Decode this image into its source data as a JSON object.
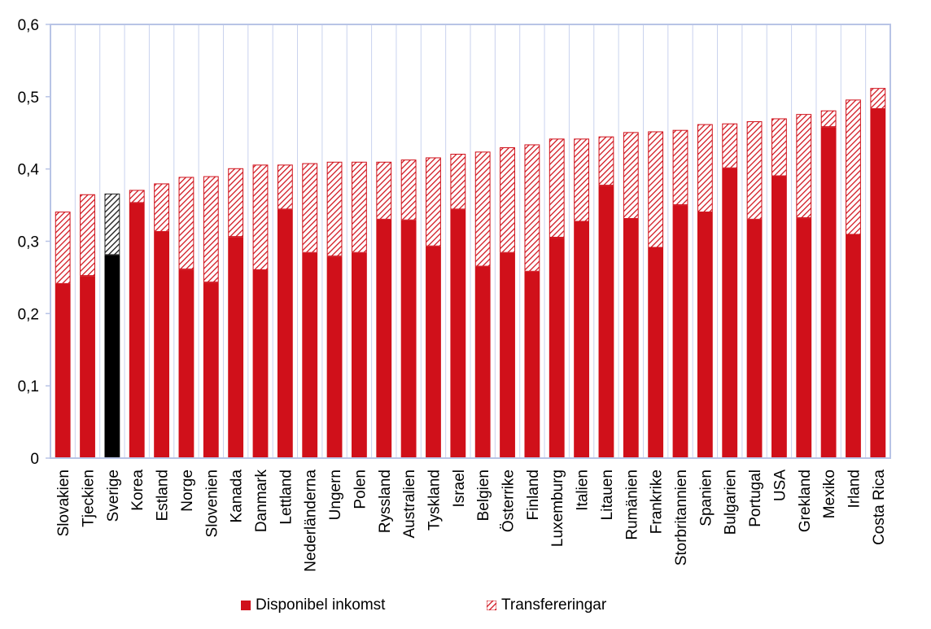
{
  "chart_data": {
    "type": "bar",
    "stacked": true,
    "ylim": [
      0,
      0.6
    ],
    "yticks": [
      "0",
      "0,1",
      "0,2",
      "0,3",
      "0,4",
      "0,5",
      "0,6"
    ],
    "grid": "vertical",
    "legend_position": "bottom",
    "categories": [
      "Slovakien",
      "Tjeckien",
      "Sverige",
      "Korea",
      "Estland",
      "Norge",
      "Slovenien",
      "Kanada",
      "Danmark",
      "Lettland",
      "Nederländerna",
      "Ungern",
      "Polen",
      "Ryssland",
      "Australien",
      "Tyskland",
      "Israel",
      "Belgien",
      "Österrike",
      "Finland",
      "Luxemburg",
      "Italien",
      "Litauen",
      "Rumänien",
      "Frankrike",
      "Storbritannien",
      "Spanien",
      "Bulgarien",
      "Portugal",
      "USA",
      "Grekland",
      "Mexiko",
      "Irland",
      "Costa Rica"
    ],
    "highlight_category": "Sverige",
    "series": [
      {
        "name": "Disponibel inkomst",
        "color": "#d0101a",
        "highlight_color": "#000000",
        "values": [
          0.241,
          0.252,
          0.281,
          0.353,
          0.313,
          0.261,
          0.243,
          0.306,
          0.26,
          0.344,
          0.284,
          0.279,
          0.284,
          0.33,
          0.329,
          0.293,
          0.344,
          0.265,
          0.284,
          0.258,
          0.305,
          0.327,
          0.377,
          0.331,
          0.291,
          0.35,
          0.34,
          0.401,
          0.33,
          0.39,
          0.332,
          0.458,
          0.309,
          0.483
        ]
      },
      {
        "name": "Transfereringar",
        "color": "#d0101a",
        "pattern": "hatched",
        "highlight_color": "#000000",
        "values": [
          0.1,
          0.113,
          0.085,
          0.018,
          0.067,
          0.128,
          0.147,
          0.095,
          0.146,
          0.062,
          0.124,
          0.131,
          0.126,
          0.08,
          0.084,
          0.123,
          0.077,
          0.159,
          0.146,
          0.176,
          0.137,
          0.115,
          0.068,
          0.12,
          0.161,
          0.104,
          0.122,
          0.062,
          0.136,
          0.08,
          0.144,
          0.023,
          0.187,
          0.029
        ]
      }
    ]
  }
}
